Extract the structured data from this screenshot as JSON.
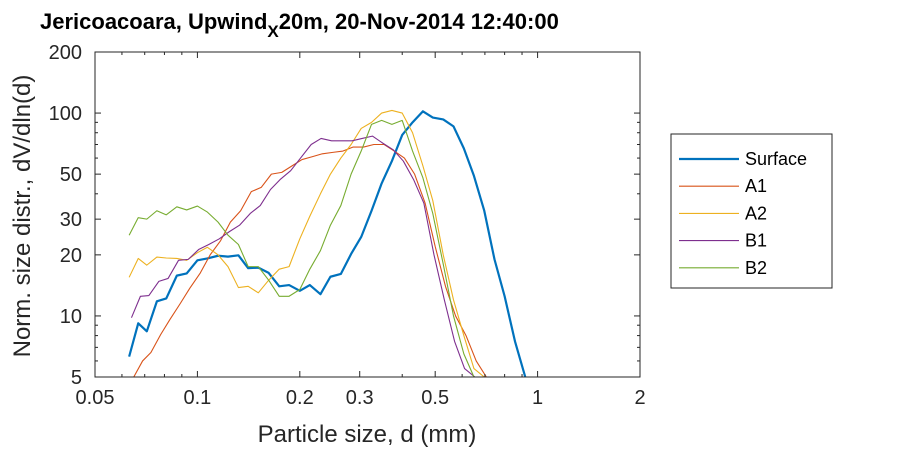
{
  "chart_data": {
    "type": "line",
    "title": {
      "main": "Jericoacoara, Upwind",
      "subscript": "X",
      "rest": "20m, 20-Nov-2014 12:40:00"
    },
    "xlabel": "Particle size, d (mm)",
    "ylabel": "Norm. size distr., dV/dln(d)",
    "x_scale": "log",
    "y_scale": "log",
    "xlim": [
      0.05,
      2
    ],
    "ylim": [
      5,
      200
    ],
    "x_ticks": [
      0.05,
      0.1,
      0.2,
      0.3,
      0.5,
      1,
      2
    ],
    "x_tick_labels": [
      "0.05",
      "0.1",
      "0.2",
      "0.3",
      "0.5",
      "1",
      "2"
    ],
    "y_ticks": [
      5,
      10,
      20,
      30,
      50,
      100,
      200
    ],
    "y_tick_labels": [
      "5",
      "10",
      "20",
      "30",
      "50",
      "100",
      "200"
    ],
    "grid": false,
    "legend_position": "right-outside",
    "series": [
      {
        "name": "Surface",
        "color": "#0072bd",
        "width": 2.2,
        "x": [
          0.063,
          0.067,
          0.071,
          0.076,
          0.081,
          0.087,
          0.093,
          0.1,
          0.107,
          0.115,
          0.123,
          0.132,
          0.141,
          0.151,
          0.162,
          0.174,
          0.186,
          0.2,
          0.214,
          0.23,
          0.246,
          0.264,
          0.283,
          0.303,
          0.325,
          0.348,
          0.373,
          0.4,
          0.429,
          0.46,
          0.492,
          0.528,
          0.566,
          0.607,
          0.65,
          0.697,
          0.747,
          0.8,
          0.858,
          0.92,
          0.986,
          1.057,
          1.133,
          1.214,
          1.301
        ],
        "y": [
          6.3,
          9.2,
          8.4,
          11.8,
          12.2,
          15.8,
          16.2,
          18.8,
          19.2,
          19.8,
          19.6,
          19.9,
          17.2,
          17.3,
          16.3,
          14.0,
          14.2,
          13.3,
          14.2,
          12.8,
          15.6,
          16.1,
          20.2,
          24.5,
          33.0,
          45.0,
          58.0,
          78.0,
          90.0,
          102.0,
          95.0,
          93.0,
          86.0,
          67.0,
          49.0,
          33.0,
          19.0,
          12.5,
          7.5,
          5.0,
          0,
          0,
          0,
          0,
          0
        ]
      },
      {
        "name": "A1",
        "color": "#d95319",
        "width": 1.1,
        "x": [
          0.065,
          0.069,
          0.073,
          0.078,
          0.083,
          0.089,
          0.095,
          0.102,
          0.109,
          0.117,
          0.125,
          0.134,
          0.144,
          0.154,
          0.165,
          0.177,
          0.19,
          0.203,
          0.218,
          0.233,
          0.25,
          0.268,
          0.287,
          0.308,
          0.33,
          0.354,
          0.379,
          0.406,
          0.435,
          0.467,
          0.5,
          0.536,
          0.574,
          0.616,
          0.66,
          0.707
        ],
        "y": [
          5.0,
          6.0,
          6.6,
          8.1,
          9.6,
          11.5,
          13.7,
          16.3,
          20.0,
          23.5,
          29.0,
          33.0,
          41.0,
          43.0,
          50.0,
          51.0,
          55.0,
          59.0,
          61.0,
          63.0,
          64.0,
          65.0,
          68.0,
          68.0,
          70.0,
          70.0,
          65.0,
          60.0,
          50.0,
          36.0,
          22.0,
          14.0,
          10.0,
          8.0,
          6.0,
          5.0
        ]
      },
      {
        "name": "A2",
        "color": "#edb120",
        "width": 1.1,
        "x": [
          0.063,
          0.067,
          0.071,
          0.076,
          0.081,
          0.087,
          0.093,
          0.1,
          0.107,
          0.115,
          0.123,
          0.132,
          0.141,
          0.151,
          0.162,
          0.174,
          0.186,
          0.2,
          0.214,
          0.23,
          0.246,
          0.264,
          0.283,
          0.303,
          0.325,
          0.348,
          0.373,
          0.4,
          0.429,
          0.46,
          0.492,
          0.528,
          0.566,
          0.607,
          0.65,
          0.697
        ],
        "y": [
          15.5,
          19.2,
          17.8,
          19.5,
          19.3,
          19.2,
          18.8,
          20.5,
          21.8,
          20.0,
          17.5,
          13.8,
          14.0,
          13.0,
          15.0,
          17.0,
          17.5,
          24.0,
          31.0,
          40.0,
          50.0,
          60.0,
          70.0,
          84.0,
          90.0,
          100.0,
          103.0,
          100.0,
          80.0,
          55.0,
          37.0,
          20.0,
          12.0,
          8.0,
          5.5,
          5.0
        ]
      },
      {
        "name": "B1",
        "color": "#7e2f8e",
        "width": 1.1,
        "x": [
          0.064,
          0.068,
          0.072,
          0.077,
          0.082,
          0.088,
          0.094,
          0.101,
          0.108,
          0.116,
          0.124,
          0.133,
          0.143,
          0.153,
          0.164,
          0.175,
          0.188,
          0.201,
          0.216,
          0.231,
          0.248,
          0.266,
          0.285,
          0.305,
          0.327,
          0.351,
          0.376,
          0.403,
          0.432,
          0.463,
          0.496,
          0.532,
          0.57,
          0.61,
          0.654
        ],
        "y": [
          9.8,
          12.5,
          12.6,
          14.8,
          15.3,
          18.8,
          19.0,
          21.3,
          22.5,
          24.0,
          26.0,
          28.0,
          32.0,
          35.0,
          42.0,
          47.0,
          52.0,
          60.0,
          70.0,
          75.0,
          73.0,
          73.0,
          73.0,
          75.0,
          77.0,
          71.0,
          66.0,
          58.0,
          47.0,
          36.0,
          20.0,
          12.0,
          7.5,
          5.5,
          5.0
        ]
      },
      {
        "name": "B2",
        "color": "#77ac30",
        "width": 1.1,
        "x": [
          0.063,
          0.067,
          0.071,
          0.076,
          0.081,
          0.087,
          0.093,
          0.1,
          0.107,
          0.115,
          0.123,
          0.132,
          0.141,
          0.151,
          0.162,
          0.174,
          0.186,
          0.2,
          0.214,
          0.23,
          0.246,
          0.264,
          0.283,
          0.303,
          0.325,
          0.348,
          0.373,
          0.4,
          0.429,
          0.46,
          0.492,
          0.528,
          0.566,
          0.607,
          0.65,
          0.697
        ],
        "y": [
          25.0,
          30.5,
          30.0,
          33.0,
          31.5,
          34.5,
          33.3,
          34.8,
          32.5,
          29.0,
          25.0,
          22.5,
          17.5,
          17.5,
          15.0,
          12.5,
          12.5,
          13.5,
          17.0,
          21.0,
          28.0,
          35.0,
          50.0,
          65.0,
          88.0,
          92.0,
          88.0,
          92.0,
          65.0,
          48.0,
          32.0,
          18.0,
          10.0,
          6.5,
          5.0,
          4.8
        ]
      }
    ]
  }
}
